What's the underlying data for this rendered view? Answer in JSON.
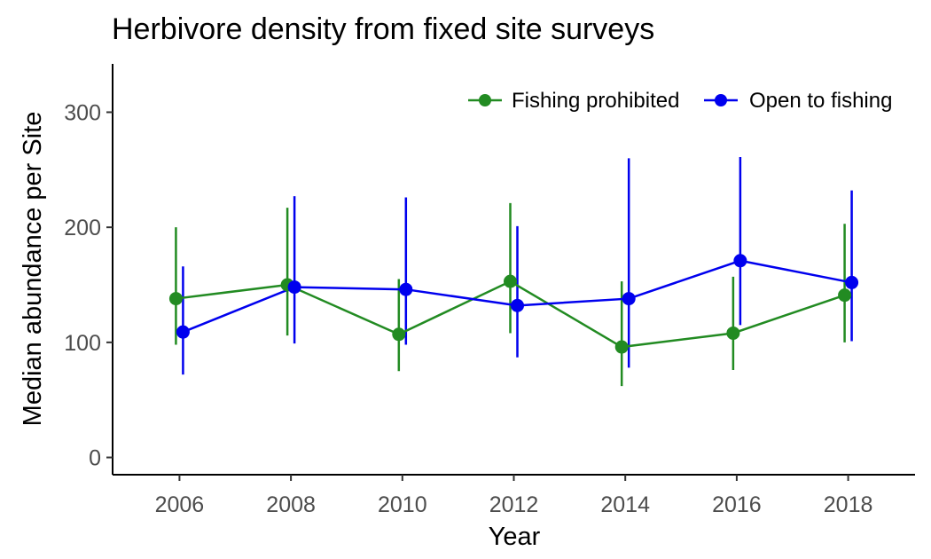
{
  "chart_data": {
    "type": "line",
    "title": "Herbivore density from fixed site surveys",
    "xlabel": "Year",
    "ylabel": "Median abundance per Site",
    "xlim": [
      2004.8,
      2019.2
    ],
    "ylim": [
      -15,
      342
    ],
    "x_ticks": [
      2006,
      2008,
      2010,
      2012,
      2014,
      2016,
      2018
    ],
    "y_ticks": [
      0,
      100,
      200,
      300
    ],
    "legend_position": "top-right",
    "series": [
      {
        "name": "Fishing prohibited",
        "color": "#228B22",
        "x": [
          2006,
          2008,
          2010,
          2012,
          2014,
          2016,
          2018
        ],
        "values": [
          138,
          150,
          107,
          153,
          96,
          108,
          141
        ],
        "lower": [
          98,
          106,
          75,
          108,
          62,
          76,
          100
        ],
        "upper": [
          200,
          217,
          155,
          221,
          153,
          157,
          203
        ]
      },
      {
        "name": "Open to fishing",
        "color": "#0000EE",
        "x": [
          2006,
          2008,
          2010,
          2012,
          2014,
          2016,
          2018
        ],
        "values": [
          109,
          148,
          146,
          132,
          138,
          171,
          152
        ],
        "lower": [
          72,
          99,
          98,
          87,
          78,
          115,
          101
        ],
        "upper": [
          166,
          227,
          226,
          201,
          260,
          261,
          232
        ]
      }
    ]
  }
}
